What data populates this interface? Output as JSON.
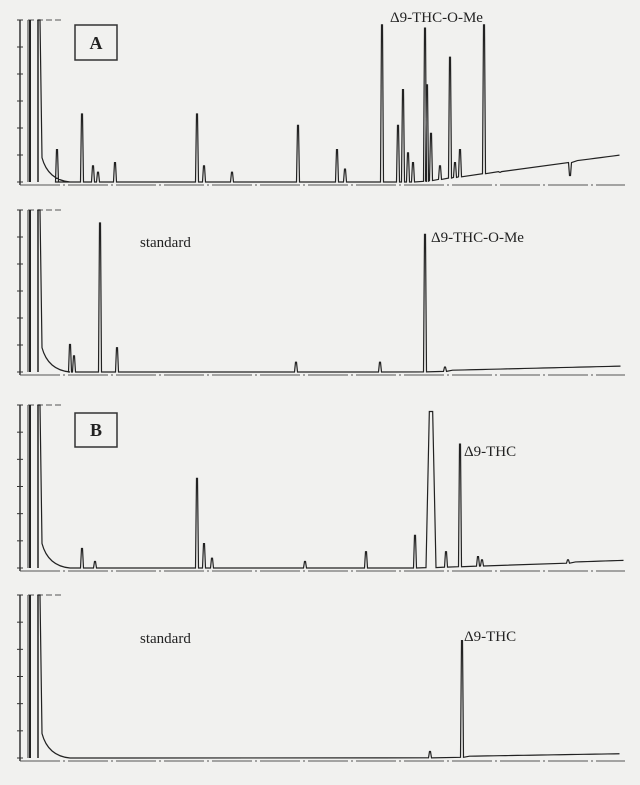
{
  "panels": [
    {
      "label": "A",
      "annotation": "Δ9-THC-O-Me"
    },
    {
      "label": "standard",
      "annotation": "Δ9-THC-O-Me"
    },
    {
      "label": "B",
      "annotation": "Δ9-THC"
    },
    {
      "label": "standard",
      "annotation": "Δ9-THC"
    }
  ]
}
